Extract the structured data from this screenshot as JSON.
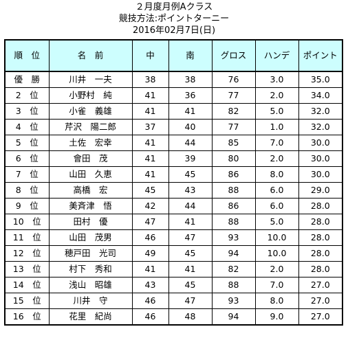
{
  "header": {
    "title": "２月度月例Aクラス",
    "method": "競技方法:ポイントターニー",
    "date": "2016年02月7日(日)"
  },
  "table": {
    "columns": [
      "順　位",
      "名　前",
      "中",
      "南",
      "グロス",
      "ハンデ",
      "ポイント"
    ],
    "rows": [
      {
        "rank": "優　勝",
        "name": "川井　一夫",
        "naka": "38",
        "minami": "38",
        "gross": "76",
        "handicap": "3.0",
        "points": "35.0"
      },
      {
        "rank": "2　位",
        "name": "小野村　純",
        "naka": "41",
        "minami": "36",
        "gross": "77",
        "handicap": "2.0",
        "points": "34.0"
      },
      {
        "rank": "3　位",
        "name": "小雀　義雄",
        "naka": "41",
        "minami": "41",
        "gross": "82",
        "handicap": "5.0",
        "points": "32.0"
      },
      {
        "rank": "4　位",
        "name": "芹沢　陽二郎",
        "naka": "37",
        "minami": "40",
        "gross": "77",
        "handicap": "1.0",
        "points": "32.0"
      },
      {
        "rank": "5　位",
        "name": "土佐　宏幸",
        "naka": "41",
        "minami": "44",
        "gross": "85",
        "handicap": "7.0",
        "points": "30.0"
      },
      {
        "rank": "6　位",
        "name": "會田　茂",
        "naka": "41",
        "minami": "39",
        "gross": "80",
        "handicap": "2.0",
        "points": "30.0"
      },
      {
        "rank": "7　位",
        "name": "山田　久恵",
        "naka": "41",
        "minami": "45",
        "gross": "86",
        "handicap": "8.0",
        "points": "30.0"
      },
      {
        "rank": "8　位",
        "name": "高橋　宏",
        "naka": "45",
        "minami": "43",
        "gross": "88",
        "handicap": "6.0",
        "points": "29.0"
      },
      {
        "rank": "9　位",
        "name": "美斉津　悟",
        "naka": "42",
        "minami": "44",
        "gross": "86",
        "handicap": "6.0",
        "points": "28.0"
      },
      {
        "rank": "10　位",
        "name": "田村　優",
        "naka": "47",
        "minami": "41",
        "gross": "88",
        "handicap": "5.0",
        "points": "28.0"
      },
      {
        "rank": "11　位",
        "name": "山田　茂男",
        "naka": "46",
        "minami": "47",
        "gross": "93",
        "handicap": "10.0",
        "points": "28.0"
      },
      {
        "rank": "12　位",
        "name": "穂戸田　光司",
        "naka": "49",
        "minami": "45",
        "gross": "94",
        "handicap": "10.0",
        "points": "28.0"
      },
      {
        "rank": "13　位",
        "name": "村下　秀和",
        "naka": "41",
        "minami": "41",
        "gross": "82",
        "handicap": "2.0",
        "points": "28.0"
      },
      {
        "rank": "14　位",
        "name": "浅山　昭雄",
        "naka": "43",
        "minami": "45",
        "gross": "88",
        "handicap": "7.0",
        "points": "27.0"
      },
      {
        "rank": "15　位",
        "name": "川井　守",
        "naka": "46",
        "minami": "47",
        "gross": "93",
        "handicap": "8.0",
        "points": "27.0"
      },
      {
        "rank": "16　位",
        "name": "花里　紀尚",
        "naka": "46",
        "minami": "48",
        "gross": "94",
        "handicap": "9.0",
        "points": "27.0"
      }
    ]
  },
  "colors": {
    "header_bg": "#cdfefe",
    "border": "#000000"
  }
}
